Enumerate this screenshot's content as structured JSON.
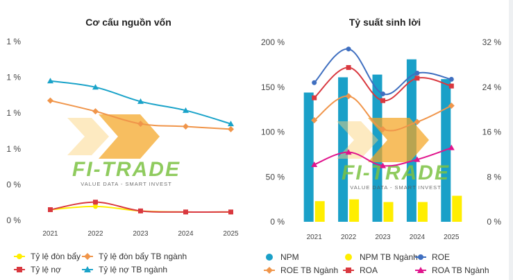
{
  "watermark": {
    "brand": "FI-TRADE",
    "tagline": "VALUE DATA - SMART INVEST"
  },
  "colors": {
    "yellow": "#ffee00",
    "orange": "#f0954a",
    "red": "#d9383f",
    "teal": "#1aa3c9",
    "blue": "#3f6fc0",
    "magenta": "#e0148c",
    "npm": "#1aa0c8"
  },
  "chart_data": [
    {
      "type": "line",
      "title": "Cơ cấu nguồn vốn",
      "categories": [
        "2021",
        "2022",
        "2023",
        "2024",
        "2025"
      ],
      "y_tick_labels": [
        "1 %",
        "1 %",
        "1 %",
        "1 %",
        "0 %",
        "0 %"
      ],
      "ylim": [
        0,
        1.0
      ],
      "series": [
        {
          "name": "Tỷ lệ đòn bẩy",
          "color": "#ffee00",
          "marker": "circle",
          "values": [
            0.06,
            0.078,
            0.053,
            0.047,
            0.047
          ]
        },
        {
          "name": "Tỷ lệ đòn bẩy TB ngành",
          "color": "#f0954a",
          "marker": "diamond",
          "values": [
            0.67,
            0.61,
            0.54,
            0.525,
            0.51
          ]
        },
        {
          "name": "Tỷ lệ nợ",
          "color": "#d9383f",
          "marker": "square",
          "values": [
            0.06,
            0.102,
            0.053,
            0.047,
            0.047
          ]
        },
        {
          "name": "Tỷ lệ nợ TB ngành",
          "color": "#1aa3c9",
          "marker": "triangle",
          "values": [
            0.78,
            0.745,
            0.665,
            0.615,
            0.54
          ]
        }
      ],
      "legend_position": "bottom",
      "grid": false
    },
    {
      "type": "bar+line",
      "title": "Tỷ suất sinh lời",
      "categories": [
        "2021",
        "2022",
        "2023",
        "2024",
        "2025"
      ],
      "y_left_tick_labels": [
        "0 %",
        "50 %",
        "100 %",
        "150 %",
        "200 %"
      ],
      "y_right_tick_labels": [
        "0 %",
        "8 %",
        "16 %",
        "24 %",
        "32 %"
      ],
      "ylim_left": [
        0,
        200
      ],
      "ylim_right": [
        0,
        32
      ],
      "series": [
        {
          "name": "NPM",
          "kind": "bar",
          "axis": "left",
          "color": "#1aa0c8",
          "values": [
            144,
            161,
            164,
            181,
            159
          ]
        },
        {
          "name": "NPM TB Ngành",
          "kind": "bar",
          "axis": "left",
          "color": "#ffee00",
          "values": [
            23,
            25,
            22,
            22,
            29
          ]
        },
        {
          "name": "ROE",
          "kind": "line",
          "axis": "right",
          "color": "#3f6fc0",
          "marker": "circle",
          "values": [
            24.8,
            30.8,
            22.8,
            26.5,
            25.4
          ]
        },
        {
          "name": "ROE TB Ngành",
          "kind": "line",
          "axis": "right",
          "color": "#f0954a",
          "marker": "diamond",
          "values": [
            18.1,
            22.4,
            16.5,
            17.8,
            20.7
          ]
        },
        {
          "name": "ROA",
          "kind": "line",
          "axis": "right",
          "color": "#d9383f",
          "marker": "square",
          "values": [
            22.1,
            27.5,
            21.6,
            25.6,
            24.2
          ]
        },
        {
          "name": "ROA TB Ngành",
          "kind": "line",
          "axis": "right",
          "color": "#e0148c",
          "marker": "triangle",
          "values": [
            10.2,
            12.4,
            10.0,
            11.1,
            13.2
          ]
        }
      ],
      "legend_position": "bottom",
      "grid": false
    }
  ]
}
